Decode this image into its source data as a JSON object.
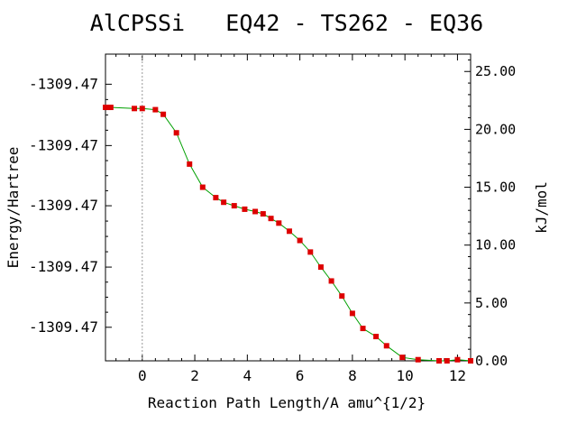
{
  "chart_data": {
    "type": "line",
    "title": "AlCPSSi   EQ42 - TS262 - EQ36",
    "xlabel": "Reaction Path Length/A amu^{1/2}",
    "ylabel_left": "Energy/Hartree",
    "ylabel_right": "kJ/mol",
    "xlim": [
      -1.4,
      12.5
    ],
    "ylim_right": [
      0.0,
      26.5
    ],
    "x_ticks": [
      0,
      2,
      4,
      6,
      8,
      10,
      12
    ],
    "x_tick_labels": [
      "0",
      "2",
      "4",
      "6",
      "8",
      "10",
      "12"
    ],
    "y_right_ticks": [
      0,
      5,
      10,
      15,
      20,
      25
    ],
    "y_right_tick_labels": [
      "0.00",
      "5.00",
      "10.00",
      "15.00",
      "20.00",
      "25.00"
    ],
    "y_left_ticks_kj": [
      2.9,
      8.1,
      13.4,
      18.6,
      23.9
    ],
    "y_left_tick_labels": [
      "-1309.47",
      "-1309.47",
      "-1309.47",
      "-1309.47",
      "-1309.47"
    ],
    "ts_marker_x": 0,
    "grid": false,
    "colors": {
      "line": "#00a000",
      "marker": "#dd0000",
      "ts_line": "#999999"
    },
    "series": [
      {
        "x": [
          -1.4,
          -1.3,
          -1.2,
          -0.3,
          0.0,
          0.5,
          0.8,
          1.3,
          1.8,
          2.3,
          2.8,
          3.1,
          3.5,
          3.9,
          4.3,
          4.6,
          4.9,
          5.2,
          5.6,
          6.0,
          6.4,
          6.8,
          7.2,
          7.6,
          8.0,
          8.4,
          8.9,
          9.3,
          9.9,
          10.5,
          11.3,
          11.6,
          12.0,
          12.5
        ],
        "y": [
          21.9,
          21.9,
          21.9,
          21.8,
          21.8,
          21.7,
          21.3,
          19.7,
          17.0,
          15.0,
          14.1,
          13.7,
          13.4,
          13.1,
          12.9,
          12.7,
          12.3,
          11.9,
          11.2,
          10.4,
          9.4,
          8.1,
          6.9,
          5.6,
          4.1,
          2.8,
          2.1,
          1.3,
          0.3,
          0.1,
          0.0,
          0.0,
          0.1,
          0.0
        ]
      }
    ]
  }
}
